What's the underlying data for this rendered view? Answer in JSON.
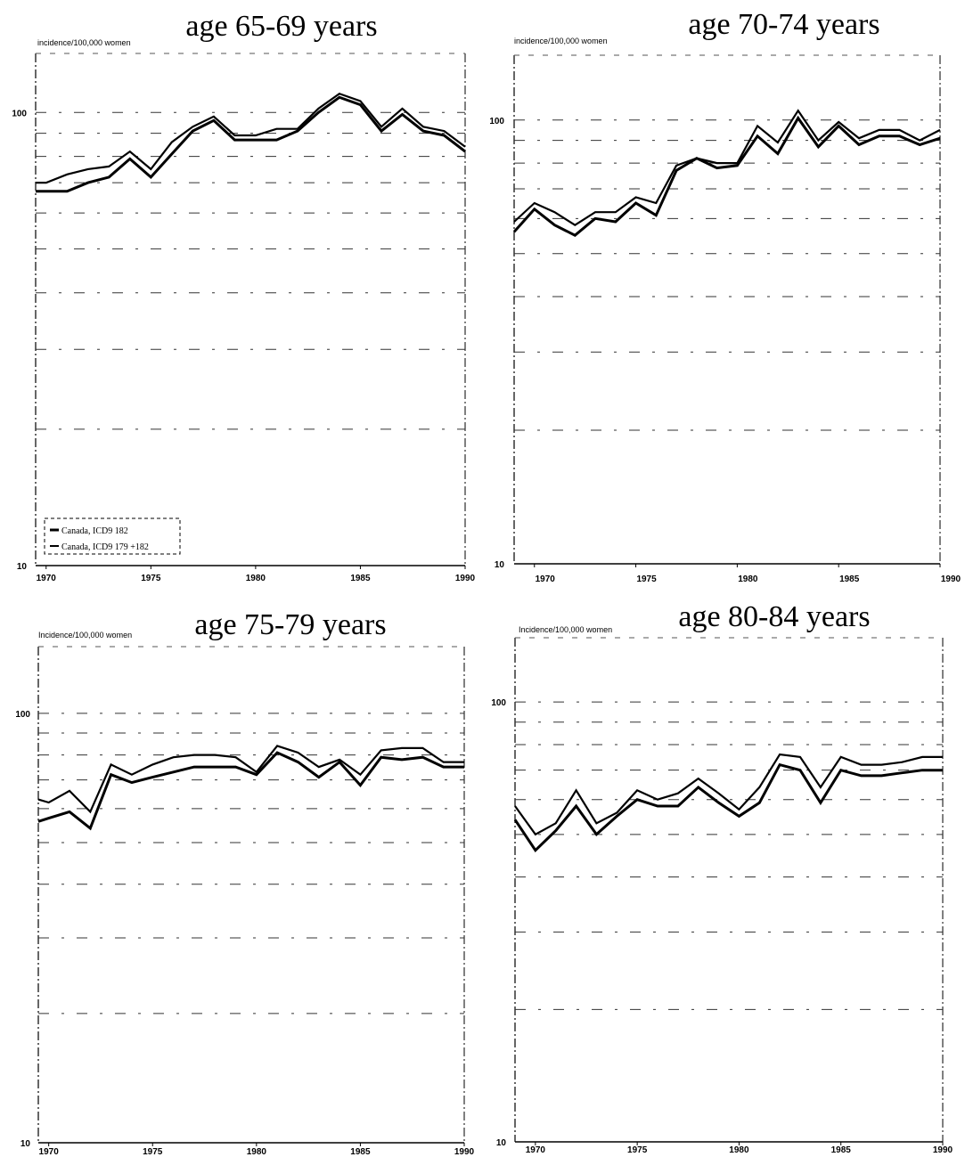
{
  "chart_data": [
    {
      "type": "line",
      "title": "age 65-69 years",
      "ylabel": "incidence/100,000 women",
      "xlabel": "",
      "y_scale": "log",
      "ylim": [
        10,
        135
      ],
      "xlim": [
        1969.5,
        1990
      ],
      "x_ticks": [
        1970,
        1975,
        1980,
        1985,
        1990
      ],
      "x_tick_labels": [
        "1970",
        "1975",
        "1980",
        "1985",
        "1990"
      ],
      "y_ticks": [
        10,
        100
      ],
      "y_tick_labels": [
        "10",
        "100"
      ],
      "legend": {
        "placement": "bottom-left",
        "entries": [
          "Canada, ICD9 182",
          "Canada, ICD9 179 +182"
        ]
      },
      "x": [
        1969.5,
        1970,
        1971,
        1972,
        1973,
        1974,
        1975,
        1976,
        1977,
        1978,
        1979,
        1980,
        1981,
        1982,
        1983,
        1984,
        1985,
        1986,
        1987,
        1988,
        1989,
        1990
      ],
      "series": [
        {
          "name": "Canada, ICD9 182",
          "values": [
            67,
            67,
            67,
            70,
            72,
            79,
            72,
            81,
            91,
            96,
            87,
            87,
            87,
            91,
            100,
            108,
            104,
            91,
            99,
            91,
            89,
            82
          ]
        },
        {
          "name": "Canada, ICD9 179 +182",
          "values": [
            70,
            70,
            73,
            75,
            76,
            82,
            75,
            86,
            93,
            98,
            89,
            89,
            92,
            92,
            102,
            110,
            106,
            93,
            102,
            93,
            91,
            84
          ]
        }
      ]
    },
    {
      "type": "line",
      "title": "age 70-74 years",
      "ylabel": "incidence/100,000 women",
      "xlabel": "",
      "y_scale": "log",
      "ylim": [
        10,
        140
      ],
      "xlim": [
        1969,
        1990
      ],
      "x_ticks": [
        1970,
        1975,
        1980,
        1985,
        1990
      ],
      "x_tick_labels": [
        "1970",
        "1975",
        "1980",
        "1985",
        "1990"
      ],
      "y_ticks": [
        10,
        100
      ],
      "y_tick_labels": [
        "10",
        "100"
      ],
      "x": [
        1969,
        1970,
        1971,
        1972,
        1973,
        1974,
        1975,
        1976,
        1977,
        1978,
        1979,
        1980,
        1981,
        1982,
        1983,
        1984,
        1985,
        1986,
        1987,
        1988,
        1989,
        1990
      ],
      "series": [
        {
          "name": "Canada, ICD9 182",
          "values": [
            56,
            63,
            58,
            55,
            60,
            59,
            65,
            61,
            77,
            82,
            78,
            79,
            92,
            84,
            101,
            87,
            97,
            88,
            92,
            92,
            88,
            91
          ]
        },
        {
          "name": "Canada, ICD9 179 +182",
          "values": [
            59,
            65,
            62,
            58,
            62,
            62,
            67,
            65,
            79,
            82,
            80,
            80,
            97,
            89,
            105,
            90,
            99,
            91,
            95,
            95,
            90,
            95
          ]
        }
      ]
    },
    {
      "type": "line",
      "title": "age 75-79 years",
      "ylabel": "Incidence/100,000 women",
      "xlabel": "",
      "y_scale": "log",
      "ylim": [
        10,
        143
      ],
      "xlim": [
        1969.5,
        1990
      ],
      "x_ticks": [
        1970,
        1975,
        1980,
        1985,
        1990
      ],
      "x_tick_labels": [
        "1970",
        "1975",
        "1980",
        "1985",
        "1990"
      ],
      "y_ticks": [
        10,
        100
      ],
      "y_tick_labels": [
        "10",
        "100"
      ],
      "x": [
        1969.5,
        1970,
        1971,
        1972,
        1973,
        1974,
        1975,
        1976,
        1977,
        1978,
        1979,
        1980,
        1981,
        1982,
        1983,
        1984,
        1985,
        1986,
        1987,
        1988,
        1989,
        1990
      ],
      "series": [
        {
          "name": "Canada, ICD9 182",
          "values": [
            56,
            57,
            59,
            54,
            72,
            69,
            71,
            73,
            75,
            75,
            75,
            72,
            81,
            77,
            71,
            77,
            68,
            79,
            78,
            79,
            75,
            75
          ]
        },
        {
          "name": "Canada, ICD9 179 +182",
          "values": [
            63,
            62,
            66,
            59,
            76,
            72,
            76,
            79,
            80,
            80,
            79,
            73,
            84,
            81,
            75,
            78,
            72,
            82,
            83,
            83,
            77,
            77
          ]
        }
      ]
    },
    {
      "type": "line",
      "title": "age 80-84 years",
      "ylabel": "Incidence/100,000 women",
      "xlabel": "",
      "y_scale": "log",
      "ylim": [
        10,
        140
      ],
      "xlim": [
        1969,
        1990
      ],
      "x_ticks": [
        1970,
        1975,
        1980,
        1985,
        1990
      ],
      "x_tick_labels": [
        "1970",
        "1975",
        "1980",
        "1985",
        "1990"
      ],
      "y_ticks": [
        10,
        100
      ],
      "y_tick_labels": [
        "10",
        "100"
      ],
      "x": [
        1969,
        1970,
        1971,
        1972,
        1973,
        1974,
        1975,
        1976,
        1977,
        1978,
        1979,
        1980,
        1981,
        1982,
        1983,
        1984,
        1985,
        1986,
        1987,
        1988,
        1989,
        1990
      ],
      "series": [
        {
          "name": "Canada, ICD9 182",
          "values": [
            54,
            46,
            51,
            58,
            50,
            55,
            60,
            58,
            58,
            64,
            59,
            55,
            59,
            72,
            70,
            59,
            70,
            68,
            68,
            69,
            70,
            70
          ]
        },
        {
          "name": "Canada, ICD9 179 +182",
          "values": [
            58,
            50,
            53,
            63,
            53,
            56,
            63,
            60,
            62,
            67,
            62,
            57,
            64,
            76,
            75,
            64,
            75,
            72,
            72,
            73,
            75,
            75
          ]
        }
      ]
    }
  ]
}
